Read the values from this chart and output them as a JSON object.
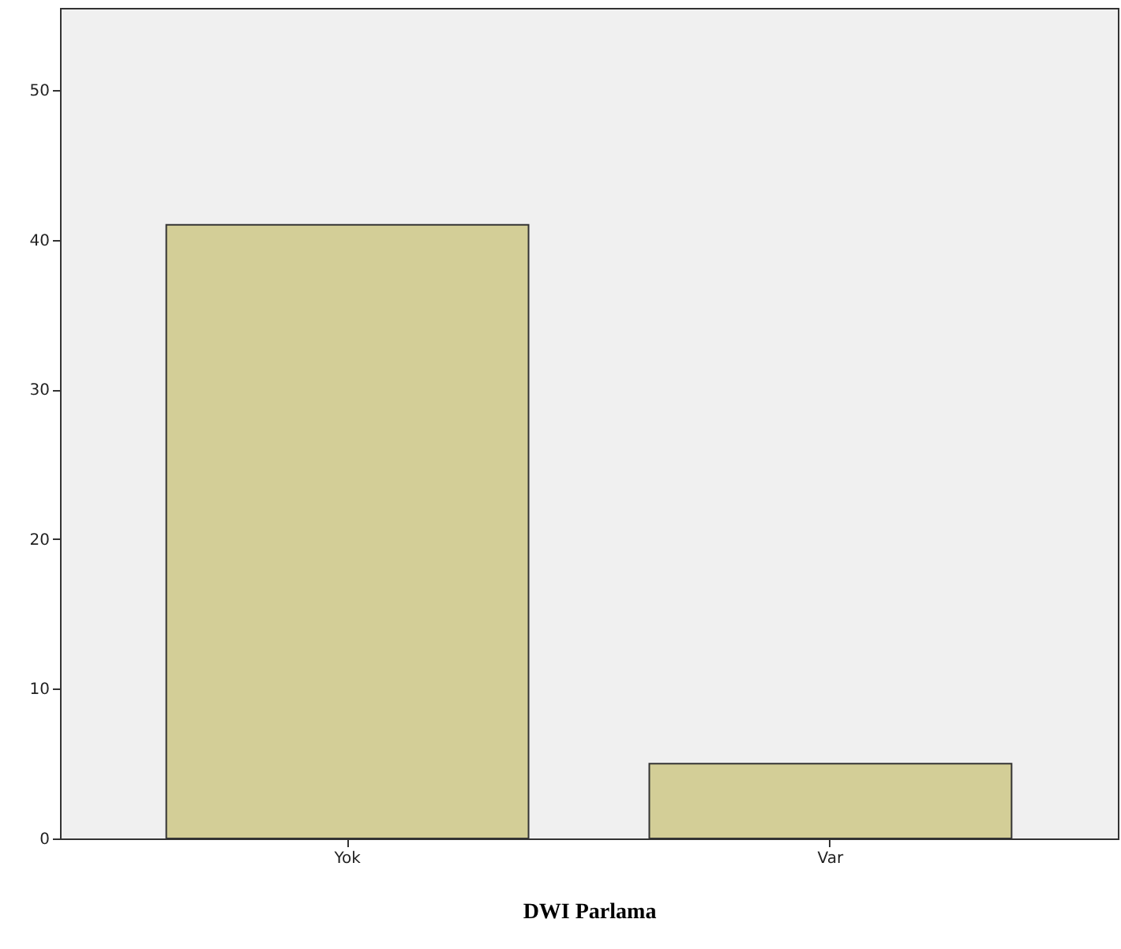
{
  "chart_data": {
    "type": "bar",
    "xlabel": "DWI Parlama",
    "categories": [
      "Yok",
      "Var"
    ],
    "values": [
      41,
      5
    ],
    "color": "#d3ce97",
    "ylim": [
      0,
      55.5
    ],
    "yticks": [
      0,
      10,
      20,
      30,
      40,
      50
    ],
    "grid": false
  }
}
